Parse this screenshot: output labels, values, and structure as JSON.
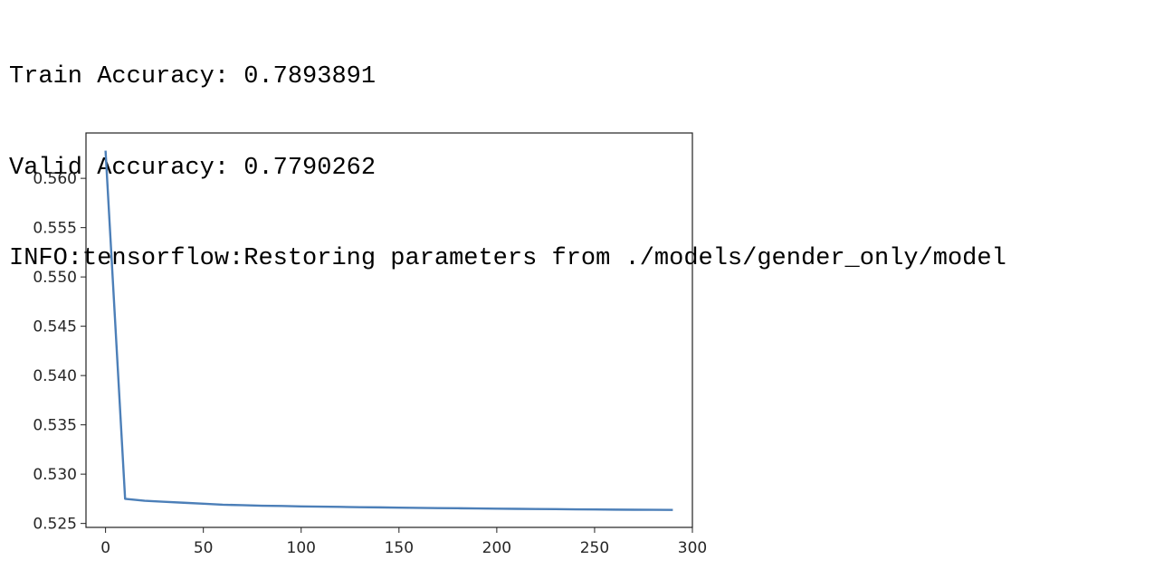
{
  "output": {
    "lines": [
      "Train Accuracy: 0.7893891",
      "Valid Accuracy: 0.7790262",
      "INFO:tensorflow:Restoring parameters from ./models/gender_only/model"
    ]
  },
  "chart_data": {
    "type": "line",
    "title": "",
    "xlabel": "",
    "ylabel": "",
    "xlim": [
      -10,
      300
    ],
    "ylim": [
      0.5246,
      0.5646
    ],
    "xticks": [
      0,
      50,
      100,
      150,
      200,
      250,
      300
    ],
    "yticks": [
      0.525,
      0.53,
      0.535,
      0.54,
      0.545,
      0.55,
      0.555,
      0.56
    ],
    "xtick_labels": [
      "0",
      "50",
      "100",
      "150",
      "200",
      "250",
      "300"
    ],
    "ytick_labels": [
      "0.525",
      "0.530",
      "0.535",
      "0.540",
      "0.545",
      "0.550",
      "0.555",
      "0.560"
    ],
    "grid": false,
    "series": [
      {
        "color": "#4c7fb8",
        "x": [
          0,
          10,
          20,
          30,
          40,
          50,
          60,
          70,
          80,
          90,
          100,
          110,
          120,
          130,
          140,
          150,
          160,
          170,
          180,
          190,
          200,
          210,
          220,
          230,
          240,
          250,
          260,
          270,
          280,
          290
        ],
        "y": [
          0.5628,
          0.5275,
          0.5273,
          0.5272,
          0.5271,
          0.527,
          0.5269,
          0.52685,
          0.5268,
          0.52677,
          0.52673,
          0.5267,
          0.52668,
          0.52665,
          0.52663,
          0.5266,
          0.52658,
          0.52656,
          0.52654,
          0.52652,
          0.5265,
          0.52648,
          0.52646,
          0.52645,
          0.52643,
          0.52642,
          0.5264,
          0.52639,
          0.52638,
          0.52637
        ]
      }
    ]
  }
}
